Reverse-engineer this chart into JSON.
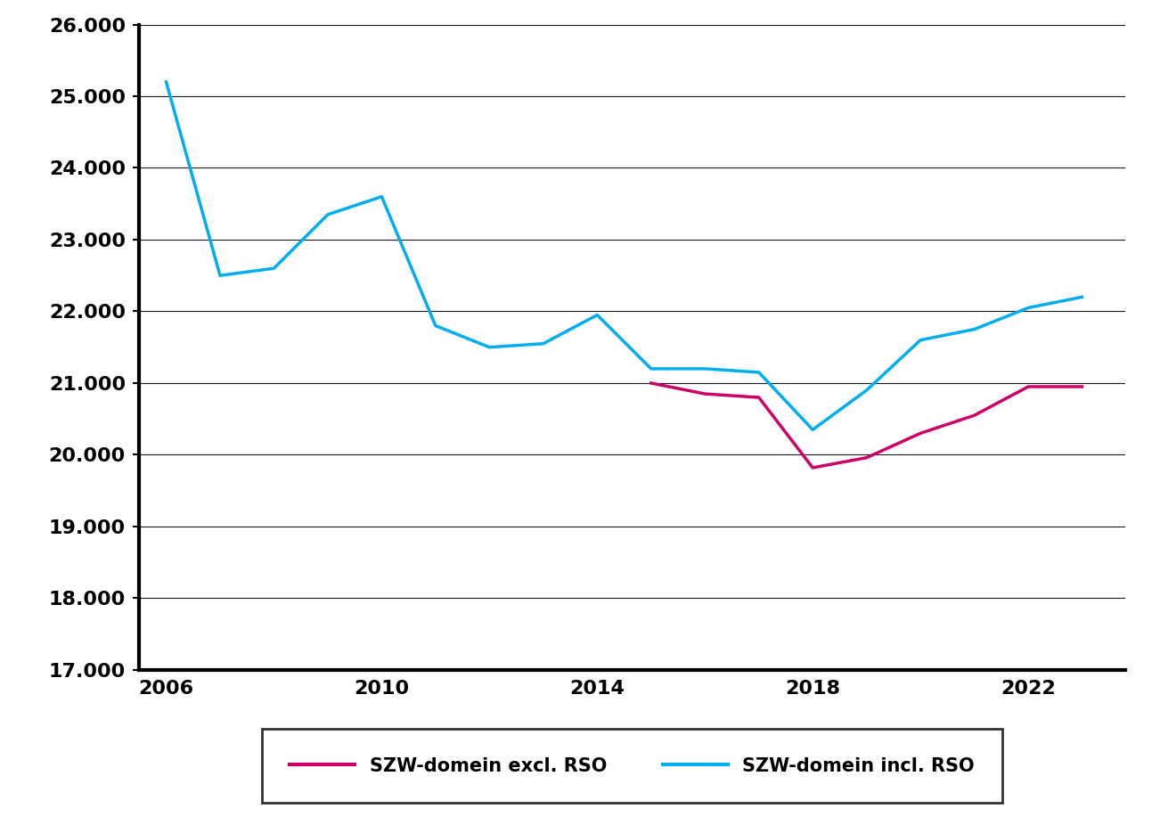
{
  "incl_rso": {
    "years": [
      2006,
      2007,
      2008,
      2009,
      2010,
      2011,
      2012,
      2013,
      2014,
      2015,
      2016,
      2017,
      2018,
      2019,
      2020,
      2021,
      2022,
      2023
    ],
    "values": [
      25200,
      22500,
      22600,
      23350,
      23600,
      21800,
      21500,
      21550,
      21950,
      21200,
      21200,
      21150,
      20350,
      20900,
      21600,
      21750,
      22050,
      22200
    ]
  },
  "excl_rso": {
    "years": [
      2015,
      2016,
      2017,
      2018,
      2019,
      2020,
      2021,
      2022,
      2023
    ],
    "values": [
      21000,
      20850,
      20800,
      19820,
      19960,
      20300,
      20550,
      20950,
      20950
    ]
  },
  "incl_color": "#00AEEF",
  "excl_color": "#CC0066",
  "ylim": [
    17000,
    26000
  ],
  "yticks": [
    17000,
    18000,
    19000,
    20000,
    21000,
    22000,
    23000,
    24000,
    25000,
    26000
  ],
  "xlim": [
    2005.5,
    2023.8
  ],
  "xticks": [
    2006,
    2010,
    2014,
    2018,
    2022
  ],
  "legend_excl": "SZW-domein excl. RSO",
  "legend_incl": "SZW-domein incl. RSO",
  "line_width": 2.5,
  "background_color": "#ffffff",
  "grid_color": "#1a1a1a",
  "grid_linewidth": 0.8,
  "spine_linewidth": 3.0,
  "tick_fontsize": 16,
  "legend_fontsize": 15
}
